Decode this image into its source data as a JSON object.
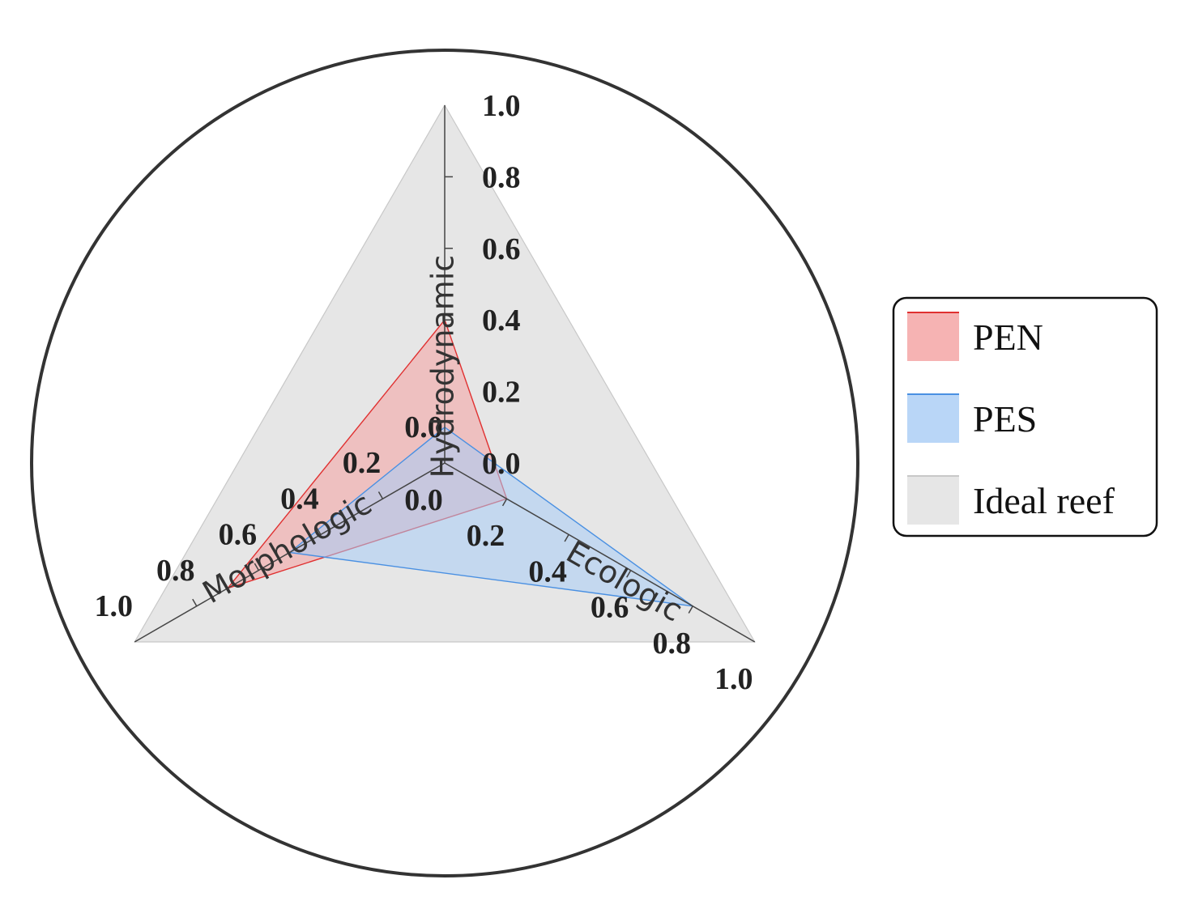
{
  "chart_data": {
    "type": "radar",
    "axes": [
      {
        "name": "Hydrodynamic",
        "ticks": [
          "0.0",
          "0.2",
          "0.4",
          "0.6",
          "0.8",
          "1.0"
        ]
      },
      {
        "name": "Ecologic",
        "ticks": [
          "0.0",
          "0.2",
          "0.4",
          "0.6",
          "0.8",
          "1.0"
        ]
      },
      {
        "name": "Morphologic",
        "ticks": [
          "0.0",
          "0.2",
          "0.4",
          "0.6",
          "0.8",
          "1.0"
        ]
      }
    ],
    "range": [
      0,
      1
    ],
    "series": [
      {
        "name": "Ideal reef",
        "values": [
          1.0,
          1.0,
          1.0
        ],
        "color": "#e6e6e6",
        "stroke": "#c8c8c8"
      },
      {
        "name": "PEN",
        "values": [
          0.4,
          0.2,
          0.7
        ],
        "color": "#f4a0a0",
        "stroke": "#e03030"
      },
      {
        "name": "PES",
        "values": [
          0.1,
          0.8,
          0.5
        ],
        "color": "#a8ccf5",
        "stroke": "#4a90e2"
      }
    ],
    "legend": {
      "position": "right",
      "items": [
        "PEN",
        "PES",
        "Ideal reef"
      ]
    }
  }
}
